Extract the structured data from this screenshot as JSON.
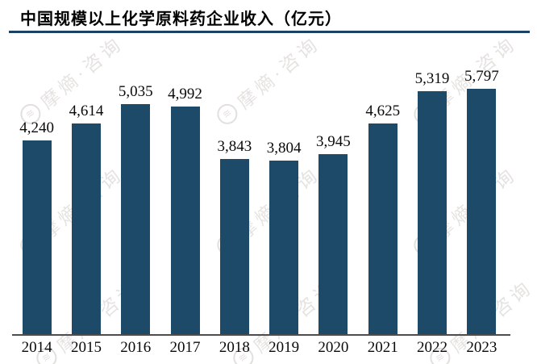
{
  "title": "中国规模以上化学原料药企业收入（亿元）",
  "watermark": {
    "text": "摩熵·咨询",
    "logo_glyph": "≋"
  },
  "colors": {
    "bar": "#1c4a68",
    "title_rule": "#1c4164",
    "axis_line": "#4d4d4d",
    "text": "#0a0a0a",
    "background": "#ffffff",
    "watermark": "rgba(150,142,132,0.25)"
  },
  "chart_data": {
    "type": "bar",
    "title": "中国规模以上化学原料药企业收入（亿元）",
    "categories": [
      "2014",
      "2015",
      "2016",
      "2017",
      "2018",
      "2019",
      "2020",
      "2021",
      "2022",
      "2023"
    ],
    "values": [
      4240,
      4614,
      5035,
      4992,
      3843,
      3804,
      3945,
      4625,
      5319,
      5797
    ],
    "value_labels": [
      "4,240",
      "4,614",
      "5,035",
      "4,992",
      "3,843",
      "3,804",
      "3,945",
      "4,625",
      "5,319",
      "5,797"
    ],
    "xlabel": "",
    "ylabel": "",
    "ylim": [
      0,
      5797
    ],
    "grid": false,
    "legend": "none",
    "bar_color": "#1c4a68"
  }
}
